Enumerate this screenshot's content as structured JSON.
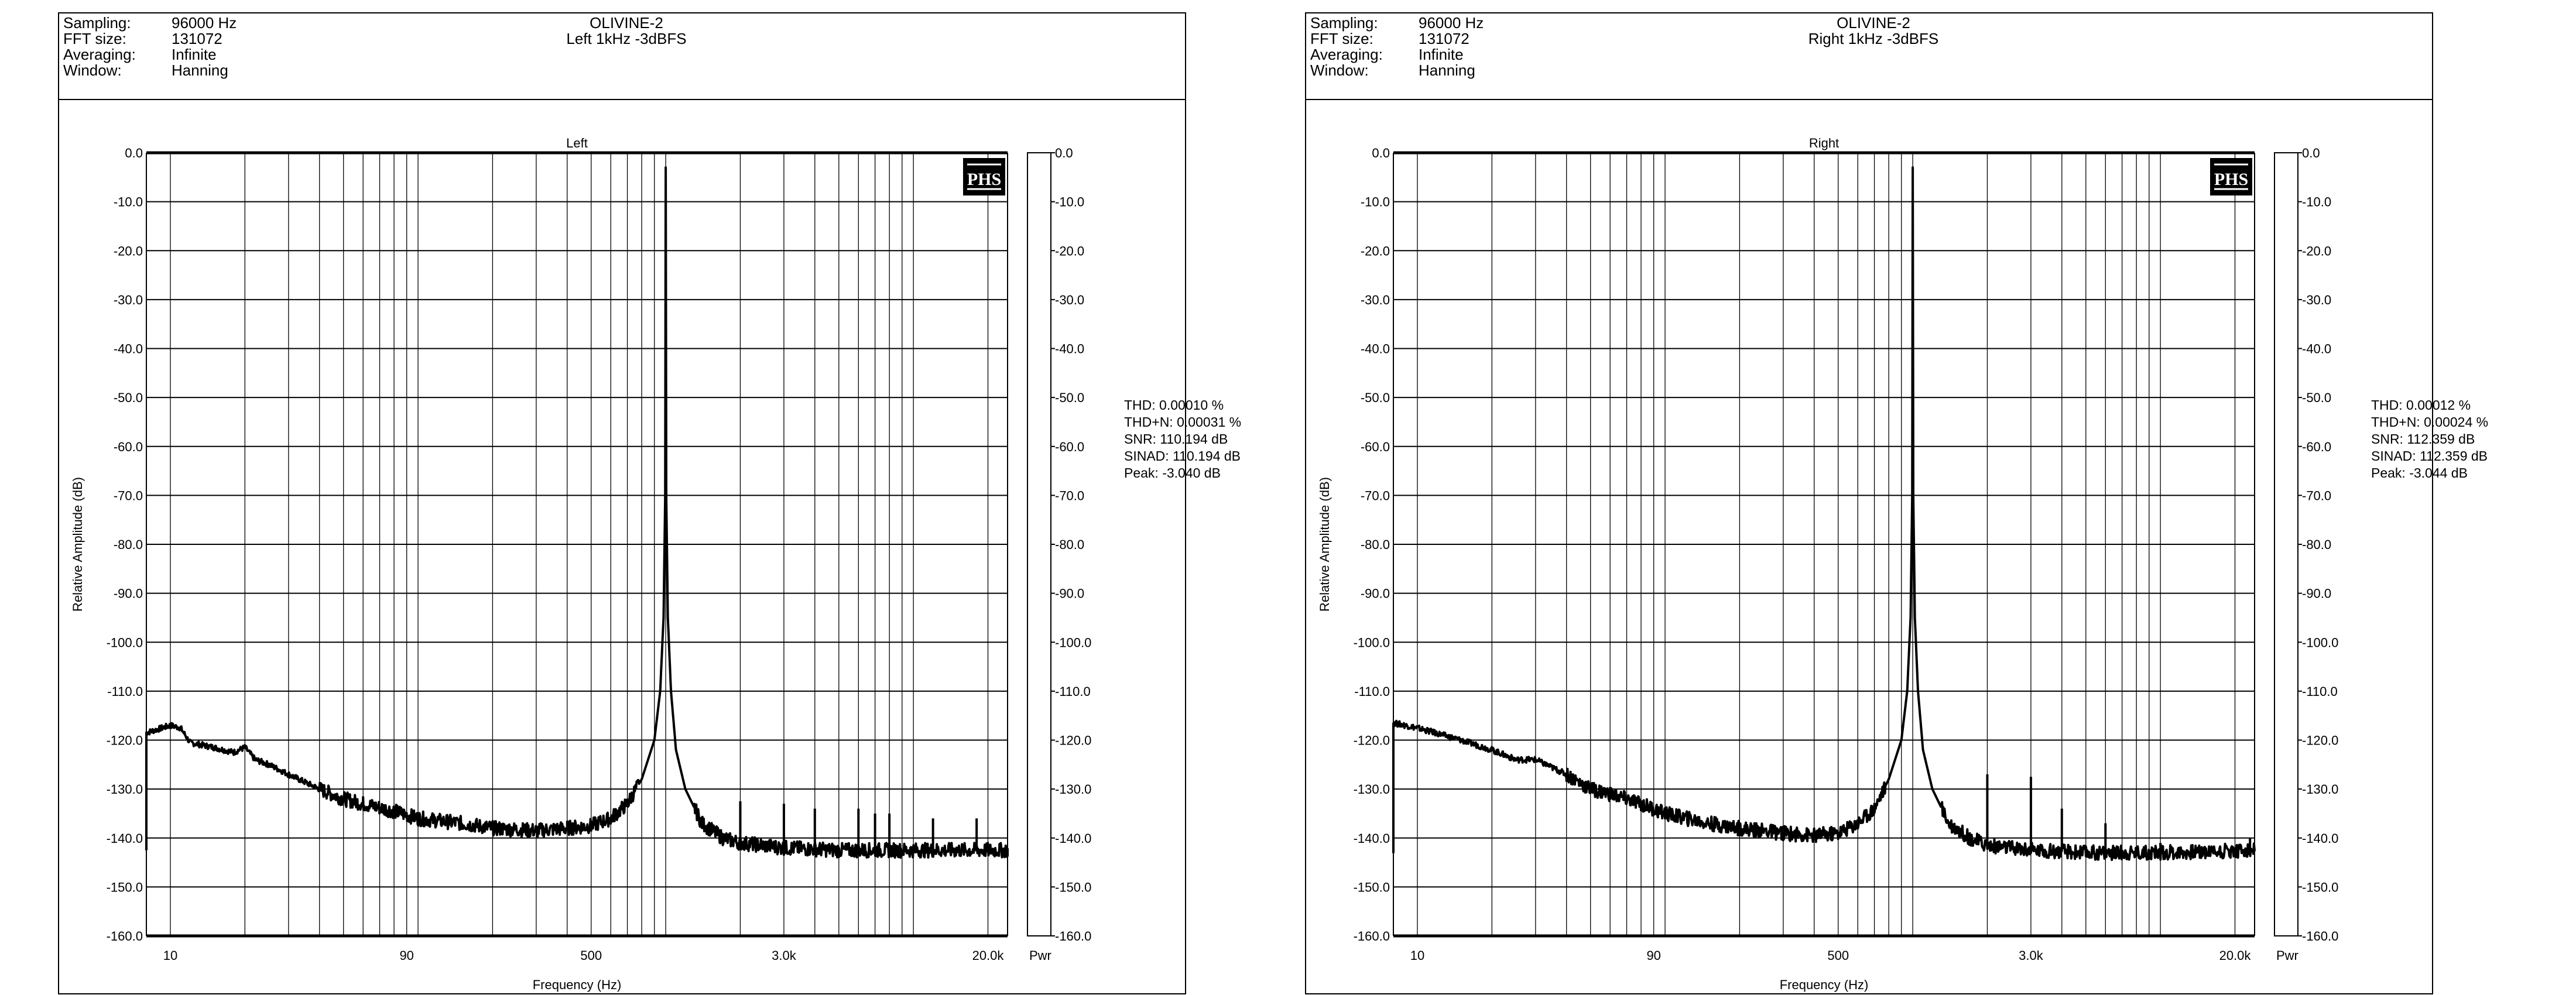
{
  "panels": [
    {
      "header": {
        "rows": [
          {
            "label": "Sampling:",
            "value": "96000 Hz"
          },
          {
            "label": "FFT size:",
            "value": "131072"
          },
          {
            "label": "Averaging:",
            "value": "Infinite"
          },
          {
            "label": "Window:",
            "value": "Hanning"
          }
        ],
        "title": "OLIVINE-2",
        "subtitle": "Left 1kHz -3dBFS"
      },
      "logo": "PHS",
      "stats": [
        "THD: 0.00010 %",
        "THD+N: 0.00031 %",
        "SNR: 110.194 dB",
        "SINAD: 110.194 dB",
        "Peak: -3.040 dB"
      ]
    },
    {
      "header": {
        "rows": [
          {
            "label": "Sampling:",
            "value": "96000 Hz"
          },
          {
            "label": "FFT size:",
            "value": "131072"
          },
          {
            "label": "Averaging:",
            "value": "Infinite"
          },
          {
            "label": "Window:",
            "value": "Hanning"
          }
        ],
        "title": "OLIVINE-2",
        "subtitle": "Right 1kHz -3dBFS"
      },
      "logo": "PHS",
      "stats": [
        "THD: 0.00012 %",
        "THD+N: 0.00024 %",
        "SNR: 112.359 dB",
        "SINAD: 112.359 dB",
        "Peak: -3.044 dB"
      ]
    }
  ],
  "chart_data": [
    {
      "type": "line",
      "title": "Left",
      "xlabel": "Frequency (Hz)",
      "ylabel": "Relative Amplitude (dB)",
      "x_scale": "log",
      "xlim": [
        8,
        24000
      ],
      "ylim": [
        -160,
        0
      ],
      "xticks": [
        {
          "value": 10,
          "label": "10"
        },
        {
          "value": 90,
          "label": "90"
        },
        {
          "value": 500,
          "label": "500"
        },
        {
          "value": 3000,
          "label": "3.0k"
        },
        {
          "value": 20000,
          "label": "20.0k"
        }
      ],
      "yticks": [
        "0.0",
        "-10.0",
        "-20.0",
        "-30.0",
        "-40.0",
        "-50.0",
        "-60.0",
        "-70.0",
        "-80.0",
        "-90.0",
        "-100.0",
        "-110.0",
        "-120.0",
        "-130.0",
        "-140.0",
        "-150.0",
        "-160.0"
      ],
      "secondary_axis_label": "Pwr",
      "grid": true,
      "series": [
        {
          "name": "Left",
          "points": [
            [
              8,
              -118.5
            ],
            [
              10,
              -117
            ],
            [
              11,
              -117.5
            ],
            [
              12,
              -120.5
            ],
            [
              15,
              -121.5
            ],
            [
              18,
              -122.5
            ],
            [
              20,
              -121.5
            ],
            [
              22,
              -124
            ],
            [
              25,
              -125
            ],
            [
              30,
              -127
            ],
            [
              40,
              -130
            ],
            [
              50,
              -132
            ],
            [
              60,
              -133
            ],
            [
              80,
              -134.5
            ],
            [
              100,
              -136
            ],
            [
              150,
              -137
            ],
            [
              200,
              -138
            ],
            [
              300,
              -138.5
            ],
            [
              400,
              -138
            ],
            [
              500,
              -137.5
            ],
            [
              600,
              -136
            ],
            [
              700,
              -133
            ],
            [
              800,
              -128
            ],
            [
              900,
              -120
            ],
            [
              950,
              -110
            ],
            [
              980,
              -95
            ],
            [
              995,
              -70
            ],
            [
              1000,
              -3
            ],
            [
              1005,
              -70
            ],
            [
              1020,
              -95
            ],
            [
              1050,
              -110
            ],
            [
              1100,
              -122
            ],
            [
              1200,
              -130
            ],
            [
              1400,
              -137
            ],
            [
              1700,
              -140
            ],
            [
              2000,
              -141
            ],
            [
              3000,
              -142
            ],
            [
              5000,
              -142.5
            ],
            [
              10000,
              -142.5
            ],
            [
              24000,
              -142.5
            ]
          ],
          "spikes": [
            [
              2000,
              -132.5
            ],
            [
              3000,
              -133
            ],
            [
              4000,
              -134
            ],
            [
              6000,
              -134
            ],
            [
              7000,
              -135
            ],
            [
              8000,
              -135
            ],
            [
              12000,
              -136
            ],
            [
              18000,
              -136
            ]
          ]
        }
      ]
    },
    {
      "type": "line",
      "title": "Right",
      "xlabel": "Frequency (Hz)",
      "ylabel": "Relative Amplitude (dB)",
      "x_scale": "log",
      "xlim": [
        8,
        24000
      ],
      "ylim": [
        -160,
        0
      ],
      "xticks": [
        {
          "value": 10,
          "label": "10"
        },
        {
          "value": 90,
          "label": "90"
        },
        {
          "value": 500,
          "label": "500"
        },
        {
          "value": 3000,
          "label": "3.0k"
        },
        {
          "value": 20000,
          "label": "20.0k"
        }
      ],
      "yticks": [
        "0.0",
        "-10.0",
        "-20.0",
        "-30.0",
        "-40.0",
        "-50.0",
        "-60.0",
        "-70.0",
        "-80.0",
        "-90.0",
        "-100.0",
        "-110.0",
        "-120.0",
        "-130.0",
        "-140.0",
        "-150.0",
        "-160.0"
      ],
      "secondary_axis_label": "Pwr",
      "grid": true,
      "series": [
        {
          "name": "Right",
          "points": [
            [
              8,
              -116.5
            ],
            [
              10,
              -117.5
            ],
            [
              15,
              -120
            ],
            [
              20,
              -122
            ],
            [
              25,
              -124
            ],
            [
              30,
              -124
            ],
            [
              40,
              -127
            ],
            [
              50,
              -130
            ],
            [
              60,
              -131
            ],
            [
              80,
              -133
            ],
            [
              100,
              -135
            ],
            [
              150,
              -137
            ],
            [
              200,
              -138
            ],
            [
              300,
              -139
            ],
            [
              400,
              -139.5
            ],
            [
              500,
              -139
            ],
            [
              600,
              -137
            ],
            [
              700,
              -134
            ],
            [
              800,
              -128
            ],
            [
              900,
              -120
            ],
            [
              950,
              -110
            ],
            [
              980,
              -95
            ],
            [
              995,
              -70
            ],
            [
              1000,
              -3
            ],
            [
              1005,
              -70
            ],
            [
              1020,
              -95
            ],
            [
              1050,
              -110
            ],
            [
              1100,
              -122
            ],
            [
              1200,
              -130
            ],
            [
              1400,
              -137
            ],
            [
              1700,
              -140
            ],
            [
              2000,
              -141.5
            ],
            [
              3000,
              -142.5
            ],
            [
              5000,
              -143
            ],
            [
              10000,
              -143
            ],
            [
              24000,
              -142.5
            ]
          ],
          "spikes": [
            [
              2000,
              -127
            ],
            [
              3000,
              -127.5
            ],
            [
              4000,
              -134
            ],
            [
              6000,
              -137
            ],
            [
              10000,
              -141
            ],
            [
              23000,
              -140
            ]
          ]
        }
      ]
    }
  ]
}
